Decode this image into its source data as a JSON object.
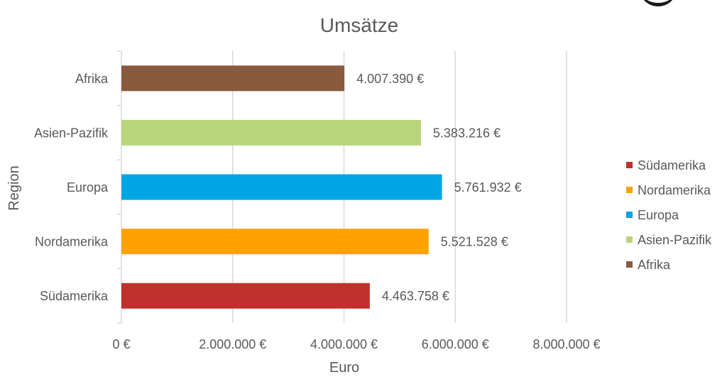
{
  "chart_data": {
    "type": "bar",
    "orientation": "horizontal",
    "title": "Umsätze",
    "xlabel": "Euro",
    "ylabel": "Region",
    "xlim": [
      0,
      8000000
    ],
    "x_ticks": [
      {
        "value": 0,
        "label": "0 €"
      },
      {
        "value": 2000000,
        "label": "2.000.000 €"
      },
      {
        "value": 4000000,
        "label": "4.000.000 €"
      },
      {
        "value": 6000000,
        "label": "6.000.000 €"
      },
      {
        "value": 8000000,
        "label": "8.000.000 €"
      }
    ],
    "categories": [
      "Südamerika",
      "Nordamerika",
      "Europa",
      "Asien-Pazifik",
      "Afrika"
    ],
    "values": [
      4463758,
      5521528,
      5761932,
      5383216,
      4007390
    ],
    "value_labels": [
      "4.463.758 €",
      "5.521.528 €",
      "5.761.932 €",
      "5.383.216 €",
      "4.007.390 €"
    ],
    "colors": [
      "#c0312b",
      "#ffa200",
      "#00a5e3",
      "#b9d57b",
      "#8a5a3e"
    ],
    "legend": {
      "position": "right",
      "entries": [
        "Südamerika",
        "Nordamerika",
        "Europa",
        "Asien-Pazifik",
        "Afrika"
      ]
    },
    "grid": true
  }
}
